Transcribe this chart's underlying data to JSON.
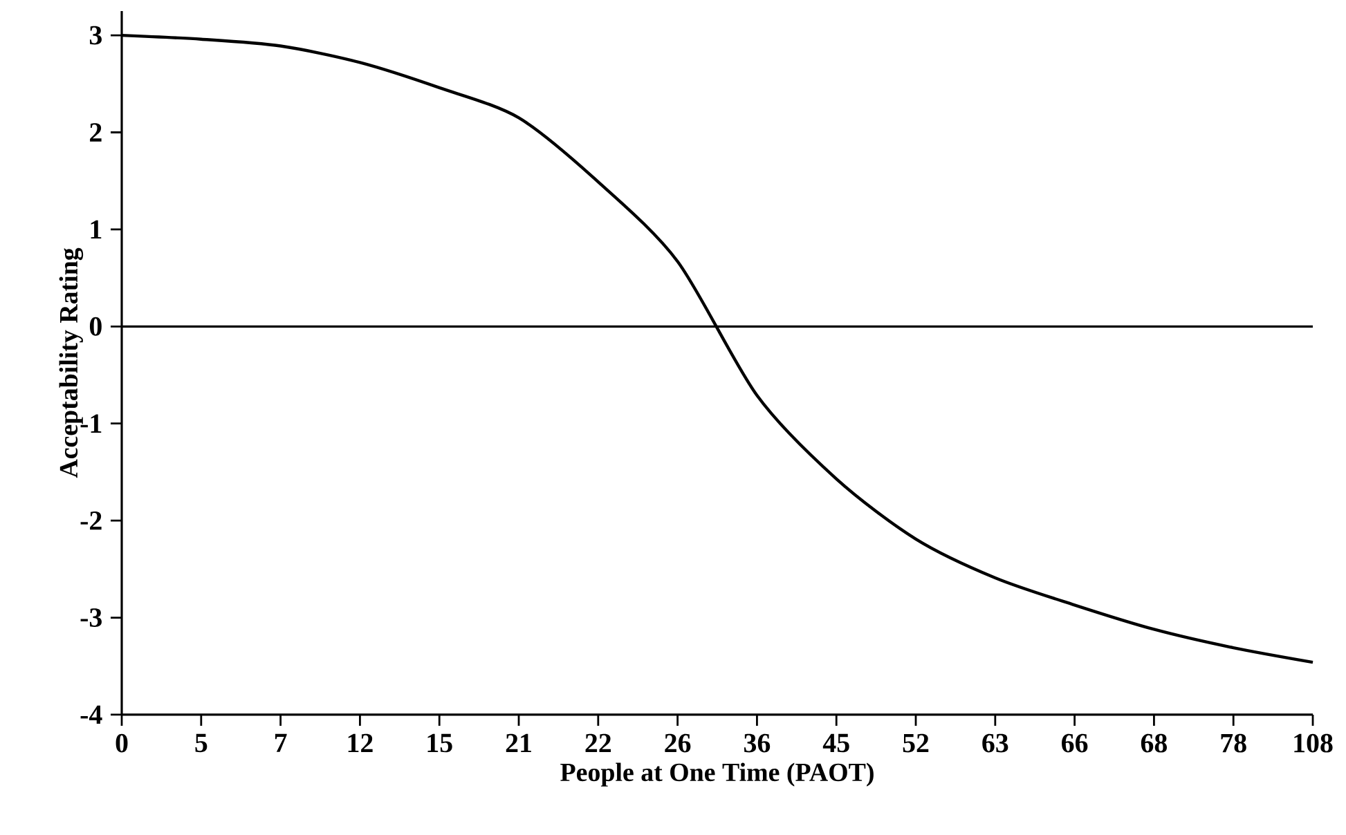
{
  "chart_data": {
    "type": "line",
    "xlabel": "People at One Time (PAOT)",
    "ylabel": "Acceptability Rating",
    "categories": [
      "0",
      "5",
      "7",
      "12",
      "15",
      "21",
      "22",
      "26",
      "36",
      "45",
      "52",
      "63",
      "66",
      "68",
      "78",
      "108"
    ],
    "values": [
      3.0,
      2.96,
      2.89,
      2.72,
      2.46,
      2.15,
      1.49,
      0.67,
      -0.71,
      -1.57,
      -2.19,
      -2.59,
      -2.87,
      -3.12,
      -3.31,
      -3.46
    ],
    "color": "#000000",
    "ylim": [
      -4,
      3.25
    ],
    "yticks": [
      -4,
      -3,
      -2,
      -1,
      0,
      1,
      2,
      3
    ],
    "grid": false,
    "marker": "none",
    "line_style": "solid",
    "ref_lines": [
      {
        "axis": "y",
        "value": 0,
        "color": "#000000"
      }
    ]
  }
}
